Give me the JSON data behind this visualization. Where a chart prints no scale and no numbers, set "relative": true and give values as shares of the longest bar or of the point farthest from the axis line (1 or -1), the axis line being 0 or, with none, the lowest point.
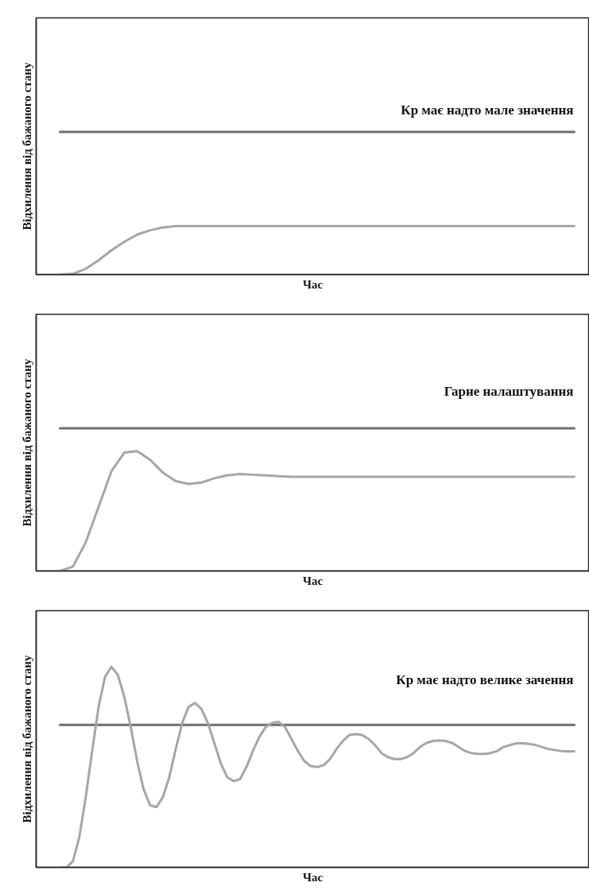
{
  "chart_data": [
    {
      "type": "line",
      "relative": true,
      "xlabel": "Час",
      "ylabel": "Відхилення від бажаного стану",
      "annotations": [
        "Кр має надто мале значення"
      ],
      "categories": [
        null,
        null,
        null,
        null,
        null,
        null,
        null,
        null,
        null,
        null,
        null,
        null,
        null,
        null,
        null,
        null,
        null,
        null,
        null,
        null,
        null,
        null,
        null,
        null,
        null,
        null,
        null,
        null,
        null,
        null,
        null,
        null,
        null,
        null,
        null,
        null,
        null,
        null,
        null,
        null,
        null
      ],
      "series": [
        {
          "color": "#6e6e6e",
          "values": [
            1,
            1,
            1,
            1,
            1,
            1,
            1,
            1,
            1,
            1,
            1,
            1,
            1,
            1,
            1,
            1,
            1,
            1,
            1,
            1,
            1,
            1,
            1,
            1,
            1,
            1,
            1,
            1,
            1,
            1,
            1,
            1,
            1,
            1,
            1,
            1,
            1,
            1,
            1,
            1,
            1
          ]
        },
        {
          "color": "#a6a6a6",
          "values": [
            0,
            0.005,
            0.04,
            0.1,
            0.17,
            0.23,
            0.28,
            0.31,
            0.33,
            0.34,
            0.34,
            0.34,
            0.34,
            0.34,
            0.34,
            0.34,
            0.34,
            0.34,
            0.34,
            0.34,
            0.34,
            0.34,
            0.34,
            0.34,
            0.34,
            0.34,
            0.34,
            0.34,
            0.34,
            0.34,
            0.34,
            0.34,
            0.34,
            0.34,
            0.34,
            0.34,
            0.34,
            0.34,
            0.34,
            0.34,
            0.34
          ]
        }
      ]
    },
    {
      "type": "line",
      "relative": true,
      "xlabel": "Час",
      "ylabel": "Відхилення від бажаного стану",
      "annotations": [
        "Гарне налаштування"
      ],
      "categories": [
        null,
        null,
        null,
        null,
        null,
        null,
        null,
        null,
        null,
        null,
        null,
        null,
        null,
        null,
        null,
        null,
        null,
        null,
        null,
        null,
        null,
        null,
        null,
        null,
        null,
        null,
        null,
        null,
        null,
        null,
        null,
        null,
        null,
        null,
        null,
        null,
        null,
        null,
        null,
        null,
        null
      ],
      "series": [
        {
          "color": "#6e6e6e",
          "values": [
            1,
            1,
            1,
            1,
            1,
            1,
            1,
            1,
            1,
            1,
            1,
            1,
            1,
            1,
            1,
            1,
            1,
            1,
            1,
            1,
            1,
            1,
            1,
            1,
            1,
            1,
            1,
            1,
            1,
            1,
            1,
            1,
            1,
            1,
            1,
            1,
            1,
            1,
            1,
            1,
            1
          ]
        },
        {
          "color": "#a6a6a6",
          "values": [
            0,
            0.03,
            0.2,
            0.45,
            0.7,
            0.83,
            0.84,
            0.78,
            0.69,
            0.63,
            0.61,
            0.62,
            0.65,
            0.67,
            0.68,
            0.675,
            0.67,
            0.665,
            0.66,
            0.66,
            0.66,
            0.66,
            0.66,
            0.66,
            0.66,
            0.66,
            0.66,
            0.66,
            0.66,
            0.66,
            0.66,
            0.66,
            0.66,
            0.66,
            0.66,
            0.66,
            0.66,
            0.66,
            0.66,
            0.66,
            0.66
          ]
        }
      ]
    },
    {
      "type": "line",
      "relative": true,
      "xlabel": "Час",
      "ylabel": "Відхилення від бажаного стану",
      "annotations": [
        "Кр має надто велике зачення"
      ],
      "categories": [
        null,
        null,
        null,
        null,
        null,
        null,
        null,
        null,
        null,
        null,
        null,
        null,
        null,
        null,
        null,
        null,
        null,
        null,
        null,
        null,
        null,
        null,
        null,
        null,
        null,
        null,
        null,
        null,
        null,
        null,
        null,
        null,
        null,
        null,
        null,
        null,
        null,
        null,
        null,
        null,
        null,
        null,
        null,
        null,
        null,
        null,
        null,
        null,
        null,
        null,
        null,
        null,
        null,
        null,
        null,
        null,
        null,
        null,
        null,
        null,
        null,
        null,
        null,
        null,
        null,
        null,
        null,
        null,
        null,
        null,
        null,
        null,
        null,
        null,
        null,
        null,
        null,
        null,
        null,
        null,
        null
      ],
      "series": [
        {
          "color": "#6e6e6e",
          "values": [
            0.71,
            0.71,
            0.71,
            0.71,
            0.71,
            0.71,
            0.71,
            0.71,
            0.71,
            0.71,
            0.71,
            0.71,
            0.71,
            0.71,
            0.71,
            0.71,
            0.71,
            0.71,
            0.71,
            0.71,
            0.71,
            0.71,
            0.71,
            0.71,
            0.71,
            0.71,
            0.71,
            0.71,
            0.71,
            0.71,
            0.71,
            0.71,
            0.71,
            0.71,
            0.71,
            0.71,
            0.71,
            0.71,
            0.71,
            0.71,
            0.71,
            0.71,
            0.71,
            0.71,
            0.71,
            0.71,
            0.71,
            0.71,
            0.71,
            0.71,
            0.71,
            0.71,
            0.71,
            0.71,
            0.71,
            0.71,
            0.71,
            0.71,
            0.71,
            0.71,
            0.71,
            0.71,
            0.71,
            0.71,
            0.71,
            0.71,
            0.71,
            0.71,
            0.71,
            0.71,
            0.71,
            0.71,
            0.71,
            0.71,
            0.71,
            0.71,
            0.71,
            0.71,
            0.71,
            0.71,
            0.71
          ]
        },
        {
          "color": "#a6a6a6",
          "values": [
            0,
            0,
            0.03,
            0.15,
            0.35,
            0.58,
            0.8,
            0.95,
            1.0,
            0.96,
            0.85,
            0.7,
            0.53,
            0.39,
            0.31,
            0.3,
            0.35,
            0.45,
            0.59,
            0.72,
            0.8,
            0.82,
            0.79,
            0.72,
            0.62,
            0.52,
            0.45,
            0.43,
            0.44,
            0.5,
            0.58,
            0.65,
            0.7,
            0.72,
            0.725,
            0.7,
            0.64,
            0.58,
            0.53,
            0.505,
            0.5,
            0.51,
            0.54,
            0.59,
            0.63,
            0.66,
            0.665,
            0.66,
            0.64,
            0.61,
            0.57,
            0.55,
            0.54,
            0.54,
            0.55,
            0.57,
            0.6,
            0.62,
            0.63,
            0.633,
            0.63,
            0.62,
            0.6,
            0.58,
            0.57,
            0.566,
            0.566,
            0.57,
            0.58,
            0.6,
            0.61,
            0.618,
            0.619,
            0.615,
            0.61,
            0.6,
            0.59,
            0.585,
            0.58,
            0.579,
            0.579
          ]
        }
      ]
    }
  ]
}
